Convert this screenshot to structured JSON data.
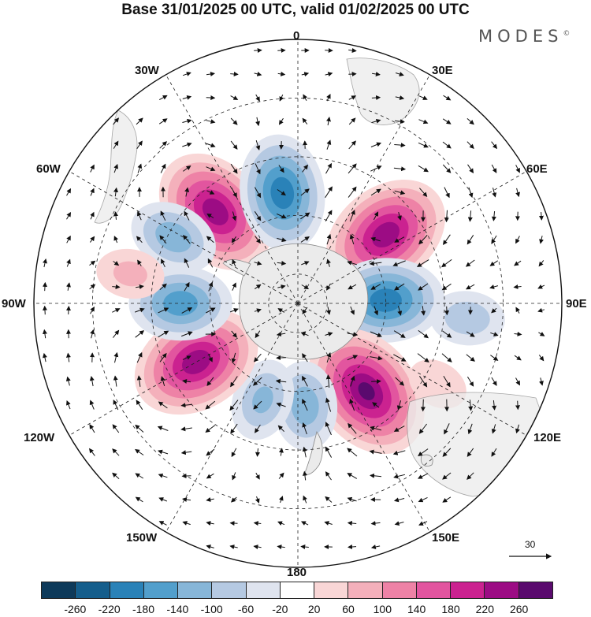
{
  "header": {
    "title": "Base 31/01/2025 00 UTC, valid 01/02/2025 00 UTC",
    "brand": "MODES",
    "brand_mark": "©"
  },
  "map_labels": {
    "lon_0": "0",
    "lon_30e": "30E",
    "lon_60e": "60E",
    "lon_90e": "90E",
    "lon_120e": "120E",
    "lon_150e": "150E",
    "lon_180": "180",
    "lon_150w": "150W",
    "lon_120w": "120W",
    "lon_90w": "90W",
    "lon_60w": "60W",
    "lon_30w": "30W"
  },
  "projection": "south-polar-stereographic",
  "anomalies": [
    {
      "lon": -42,
      "lat": -48,
      "value": 240
    },
    {
      "lon": -8,
      "lat": -52,
      "value": -200
    },
    {
      "lon": 52,
      "lat": -52,
      "value": 240
    },
    {
      "lon": 88,
      "lat": -60,
      "value": -200
    },
    {
      "lon": 142,
      "lat": -52,
      "value": 260
    },
    {
      "lon": 176,
      "lat": -55,
      "value": -120
    },
    {
      "lon": -160,
      "lat": -55,
      "value": -100
    },
    {
      "lon": -120,
      "lat": -50,
      "value": 240
    },
    {
      "lon": -90,
      "lat": -50,
      "value": -160
    },
    {
      "lon": -62,
      "lat": -42,
      "value": -120
    },
    {
      "lon": -80,
      "lat": -32,
      "value": 60
    },
    {
      "lon": 95,
      "lat": -32,
      "value": -80
    },
    {
      "lon": 120,
      "lat": -35,
      "value": 40
    }
  ],
  "legend": {
    "ticks": [
      "-260",
      "-220",
      "-180",
      "-140",
      "-100",
      "-60",
      "-20",
      "20",
      "60",
      "100",
      "140",
      "180",
      "220",
      "260"
    ],
    "colors": [
      "#0e3a5a",
      "#155e8c",
      "#2a82b8",
      "#529fcc",
      "#87b6d8",
      "#b5c9e2",
      "#dfe4ef",
      "#ffffff",
      "#f9d6d6",
      "#f4b0bb",
      "#ee82a6",
      "#e2559f",
      "#cb2290",
      "#9c0c84",
      "#5a0a6e"
    ]
  },
  "reference_vector": {
    "value": "30"
  }
}
